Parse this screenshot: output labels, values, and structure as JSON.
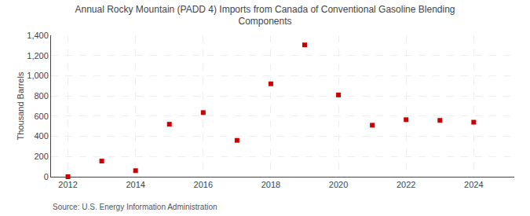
{
  "chart_data": {
    "type": "scatter",
    "title": "Annual Rocky Mountain (PADD 4) Imports from Canada of Conventional Gasoline Blending\nComponents",
    "y_label": "Thousand Barrels",
    "annotations": [
      "Source: U.S. Energy Information Administration"
    ],
    "x": [
      2012,
      2013,
      2014,
      2015,
      2016,
      2017,
      2018,
      2019,
      2020,
      2021,
      2022,
      2023,
      2024
    ],
    "values": [
      0,
      155,
      60,
      520,
      635,
      360,
      920,
      1305,
      810,
      510,
      565,
      558,
      540
    ],
    "color": "#CC0000",
    "marker": "square",
    "xlim": [
      2011.5,
      2025.2
    ],
    "ylim": [
      0,
      1400
    ],
    "xticks": [
      2012,
      2014,
      2016,
      2018,
      2020,
      2022,
      2024
    ],
    "yticks": [
      0,
      200,
      400,
      600,
      800,
      {
        "value": 1000,
        "label": "1,000"
      },
      {
        "value": 1200,
        "label": "1,200"
      },
      {
        "value": 1400,
        "label": "1,400"
      }
    ],
    "grid": true
  }
}
